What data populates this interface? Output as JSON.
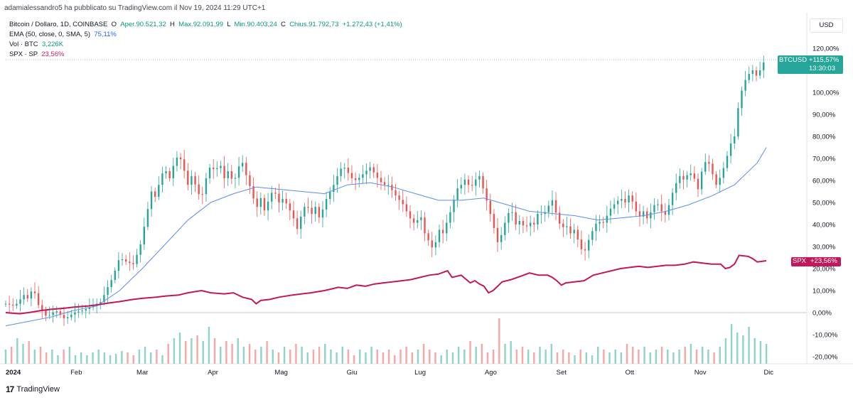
{
  "header": {
    "published_line": "adamialessandro5 ha pubblicato su TradingView.com il Nov 19, 2024 11:29 UTC+1"
  },
  "legend": {
    "symbol": "Bitcoin / Dollaro, 1D, COINBASE",
    "open_label": "O",
    "open_value": "Aper.90.521,32",
    "high_label": "H",
    "high_value": "Max.92.091,99",
    "low_label": "L",
    "low_value": "Min.90.403,24",
    "close_label": "C",
    "close_value": "Chius.91.792,73",
    "change_value": "+1.272,43 (+1,41%)",
    "ema_label": "EMA (50, close, 0, SMA, 5)",
    "ema_value": "75,11%",
    "vol_label": "Vol · BTC",
    "vol_value": "3,226K",
    "spx_label": "SPX · SP",
    "spx_value": "23,56%"
  },
  "currency_button": "USD",
  "price_tags": {
    "btc_symbol": "BTCUSD",
    "btc_change": "+115,57%",
    "btc_countdown": "13:30:03",
    "spx_symbol": "SPX",
    "spx_change": "+23,56%"
  },
  "footer": {
    "brand": "TradingView"
  },
  "colors": {
    "up": "#26a69a",
    "down": "#ef5350",
    "ema": "#5b8def",
    "spx": "#c2185b"
  },
  "chart_data": {
    "type": "line",
    "title": "Bitcoin / Dollaro, 1D, COINBASE",
    "xlabel": "",
    "ylabel": "",
    "y_scale": "percent",
    "ylim": [
      -22,
      123
    ],
    "y_ticks": [
      "120,00%",
      "110,00%",
      "100,00%",
      "90,00%",
      "80,00%",
      "70,00%",
      "60,00%",
      "50,00%",
      "40,00%",
      "30,00%",
      "20,00%",
      "10,00%",
      "0,00%",
      "-10,00%",
      "-20,00%"
    ],
    "y_tick_values": [
      120,
      110,
      100,
      90,
      80,
      70,
      60,
      50,
      40,
      30,
      20,
      10,
      0,
      -10,
      -20
    ],
    "x_ticks": [
      "2024",
      "Feb",
      "Mar",
      "Apr",
      "Mag",
      "Giu",
      "Lug",
      "Ago",
      "Set",
      "Ott",
      "Nov",
      "Dic"
    ],
    "x_tick_days": [
      0,
      31,
      60,
      91,
      121,
      152,
      182,
      213,
      244,
      274,
      305,
      335
    ],
    "x_range_days": [
      0,
      350
    ],
    "btc_close_percent": [
      [
        0,
        4
      ],
      [
        4,
        3
      ],
      [
        8,
        8
      ],
      [
        10,
        6
      ],
      [
        12,
        12
      ],
      [
        14,
        4
      ],
      [
        18,
        -2
      ],
      [
        22,
        1
      ],
      [
        26,
        -3
      ],
      [
        30,
        0
      ],
      [
        34,
        1
      ],
      [
        38,
        3
      ],
      [
        42,
        5
      ],
      [
        44,
        10
      ],
      [
        47,
        16
      ],
      [
        50,
        25
      ],
      [
        53,
        23
      ],
      [
        56,
        22
      ],
      [
        59,
        30
      ],
      [
        62,
        45
      ],
      [
        64,
        55
      ],
      [
        66,
        52
      ],
      [
        68,
        62
      ],
      [
        70,
        65
      ],
      [
        72,
        61
      ],
      [
        74,
        68
      ],
      [
        76,
        72
      ],
      [
        78,
        66
      ],
      [
        80,
        58
      ],
      [
        82,
        63
      ],
      [
        84,
        55
      ],
      [
        86,
        52
      ],
      [
        88,
        61
      ],
      [
        90,
        67
      ],
      [
        92,
        64
      ],
      [
        94,
        68
      ],
      [
        96,
        61
      ],
      [
        98,
        65
      ],
      [
        100,
        58
      ],
      [
        102,
        66
      ],
      [
        104,
        68
      ],
      [
        106,
        61
      ],
      [
        108,
        55
      ],
      [
        110,
        47
      ],
      [
        112,
        52
      ],
      [
        114,
        45
      ],
      [
        116,
        54
      ],
      [
        118,
        55
      ],
      [
        120,
        50
      ],
      [
        122,
        52
      ],
      [
        124,
        48
      ],
      [
        126,
        44
      ],
      [
        128,
        38
      ],
      [
        130,
        45
      ],
      [
        132,
        50
      ],
      [
        134,
        44
      ],
      [
        136,
        48
      ],
      [
        138,
        42
      ],
      [
        140,
        50
      ],
      [
        142,
        54
      ],
      [
        144,
        58
      ],
      [
        146,
        63
      ],
      [
        148,
        67
      ],
      [
        150,
        64
      ],
      [
        152,
        61
      ],
      [
        154,
        60
      ],
      [
        156,
        62
      ],
      [
        158,
        64
      ],
      [
        160,
        66
      ],
      [
        162,
        63
      ],
      [
        164,
        60
      ],
      [
        166,
        58
      ],
      [
        168,
        58
      ],
      [
        170,
        55
      ],
      [
        172,
        52
      ],
      [
        174,
        50
      ],
      [
        176,
        46
      ],
      [
        178,
        42
      ],
      [
        180,
        40
      ],
      [
        182,
        45
      ],
      [
        184,
        36
      ],
      [
        186,
        32
      ],
      [
        188,
        28
      ],
      [
        190,
        38
      ],
      [
        192,
        36
      ],
      [
        194,
        42
      ],
      [
        196,
        48
      ],
      [
        198,
        56
      ],
      [
        200,
        58
      ],
      [
        202,
        61
      ],
      [
        204,
        56
      ],
      [
        206,
        60
      ],
      [
        208,
        62
      ],
      [
        210,
        55
      ],
      [
        212,
        48
      ],
      [
        214,
        40
      ],
      [
        216,
        32
      ],
      [
        218,
        36
      ],
      [
        220,
        44
      ],
      [
        222,
        47
      ],
      [
        224,
        40
      ],
      [
        226,
        42
      ],
      [
        228,
        38
      ],
      [
        230,
        41
      ],
      [
        232,
        40
      ],
      [
        234,
        46
      ],
      [
        236,
        44
      ],
      [
        238,
        48
      ],
      [
        240,
        51
      ],
      [
        242,
        44
      ],
      [
        244,
        38
      ],
      [
        246,
        40
      ],
      [
        248,
        36
      ],
      [
        250,
        38
      ],
      [
        252,
        30
      ],
      [
        254,
        27
      ],
      [
        256,
        33
      ],
      [
        258,
        38
      ],
      [
        260,
        42
      ],
      [
        262,
        40
      ],
      [
        264,
        44
      ],
      [
        266,
        48
      ],
      [
        268,
        50
      ],
      [
        270,
        52
      ],
      [
        272,
        50
      ],
      [
        274,
        54
      ],
      [
        276,
        48
      ],
      [
        278,
        43
      ],
      [
        280,
        46
      ],
      [
        282,
        42
      ],
      [
        284,
        48
      ],
      [
        286,
        50
      ],
      [
        288,
        46
      ],
      [
        290,
        44
      ],
      [
        292,
        52
      ],
      [
        294,
        58
      ],
      [
        296,
        62
      ],
      [
        298,
        60
      ],
      [
        300,
        64
      ],
      [
        302,
        62
      ],
      [
        304,
        56
      ],
      [
        306,
        66
      ],
      [
        308,
        70
      ],
      [
        310,
        64
      ],
      [
        312,
        58
      ],
      [
        314,
        62
      ],
      [
        316,
        68
      ],
      [
        318,
        76
      ],
      [
        320,
        80
      ],
      [
        322,
        96
      ],
      [
        324,
        104
      ],
      [
        326,
        108
      ],
      [
        328,
        110
      ],
      [
        330,
        107
      ],
      [
        332,
        112
      ],
      [
        334,
        116
      ]
    ],
    "ema_percent": [
      [
        0,
        -6
      ],
      [
        10,
        -4
      ],
      [
        20,
        -2
      ],
      [
        30,
        1
      ],
      [
        40,
        3
      ],
      [
        50,
        10
      ],
      [
        60,
        20
      ],
      [
        70,
        31
      ],
      [
        80,
        42
      ],
      [
        90,
        50
      ],
      [
        100,
        54
      ],
      [
        110,
        57
      ],
      [
        120,
        56
      ],
      [
        130,
        55
      ],
      [
        140,
        54
      ],
      [
        150,
        58
      ],
      [
        160,
        59
      ],
      [
        170,
        57
      ],
      [
        180,
        54
      ],
      [
        190,
        51
      ],
      [
        200,
        51
      ],
      [
        210,
        52
      ],
      [
        220,
        49
      ],
      [
        230,
        46
      ],
      [
        240,
        45
      ],
      [
        250,
        44
      ],
      [
        260,
        42
      ],
      [
        270,
        43
      ],
      [
        280,
        44
      ],
      [
        290,
        46
      ],
      [
        300,
        49
      ],
      [
        310,
        53
      ],
      [
        320,
        58
      ],
      [
        330,
        68
      ],
      [
        334,
        75
      ]
    ],
    "spx_percent": [
      [
        0,
        0
      ],
      [
        6,
        -0.5
      ],
      [
        10,
        0
      ],
      [
        16,
        1
      ],
      [
        20,
        1.5
      ],
      [
        26,
        2
      ],
      [
        30,
        2.5
      ],
      [
        36,
        3
      ],
      [
        40,
        3.5
      ],
      [
        46,
        4.5
      ],
      [
        50,
        5
      ],
      [
        56,
        6
      ],
      [
        60,
        6.5
      ],
      [
        66,
        7
      ],
      [
        70,
        7.5
      ],
      [
        76,
        8
      ],
      [
        80,
        9
      ],
      [
        86,
        10
      ],
      [
        90,
        9
      ],
      [
        96,
        8.5
      ],
      [
        100,
        9
      ],
      [
        104,
        7
      ],
      [
        108,
        6
      ],
      [
        110,
        4
      ],
      [
        112,
        5.5
      ],
      [
        116,
        6
      ],
      [
        120,
        7
      ],
      [
        126,
        8
      ],
      [
        130,
        8.5
      ],
      [
        134,
        9
      ],
      [
        140,
        10
      ],
      [
        146,
        11.5
      ],
      [
        150,
        11
      ],
      [
        154,
        12.5
      ],
      [
        158,
        12
      ],
      [
        162,
        13
      ],
      [
        166,
        13.5
      ],
      [
        170,
        14
      ],
      [
        174,
        14.5
      ],
      [
        178,
        15
      ],
      [
        182,
        16
      ],
      [
        186,
        17
      ],
      [
        190,
        17.5
      ],
      [
        194,
        19
      ],
      [
        196,
        16
      ],
      [
        200,
        17
      ],
      [
        204,
        13.5
      ],
      [
        206,
        14.5
      ],
      [
        208,
        13
      ],
      [
        210,
        12
      ],
      [
        212,
        9
      ],
      [
        214,
        10
      ],
      [
        218,
        14
      ],
      [
        222,
        15
      ],
      [
        226,
        16.5
      ],
      [
        230,
        18
      ],
      [
        234,
        17
      ],
      [
        238,
        17
      ],
      [
        240,
        16
      ],
      [
        242,
        14.5
      ],
      [
        244,
        12.5
      ],
      [
        246,
        13.5
      ],
      [
        250,
        14
      ],
      [
        254,
        14.5
      ],
      [
        258,
        17
      ],
      [
        262,
        18
      ],
      [
        266,
        19
      ],
      [
        270,
        20
      ],
      [
        274,
        20.5
      ],
      [
        278,
        21
      ],
      [
        282,
        20.5
      ],
      [
        286,
        21
      ],
      [
        290,
        21.5
      ],
      [
        294,
        21.5
      ],
      [
        298,
        22
      ],
      [
        302,
        23
      ],
      [
        306,
        22.5
      ],
      [
        310,
        22
      ],
      [
        314,
        22
      ],
      [
        316,
        20
      ],
      [
        318,
        20.5
      ],
      [
        320,
        22
      ],
      [
        322,
        26
      ],
      [
        326,
        25.5
      ],
      [
        328,
        24.5
      ],
      [
        330,
        23
      ],
      [
        334,
        23.56
      ]
    ],
    "volume_relative": [
      0.5,
      0.6,
      0.9,
      0.7,
      0.8,
      0.5,
      0.6,
      0.4,
      0.5,
      0.3,
      0.5,
      0.6,
      0.3,
      0.4,
      0.3,
      0.4,
      0.5,
      0.4,
      0.3,
      0.35,
      0.45,
      0.4,
      0.3,
      0.5,
      0.6,
      0.4,
      0.5,
      0.3,
      0.7,
      0.9,
      1.1,
      0.8,
      0.9,
      1.0,
      0.8,
      1.3,
      0.9,
      0.6,
      0.8,
      0.7,
      0.9,
      0.6,
      0.7,
      0.5,
      0.6,
      0.8,
      0.5,
      0.4,
      0.6,
      0.5,
      0.7,
      0.6,
      0.4,
      0.5,
      0.6,
      0.7,
      0.5,
      0.4,
      0.6,
      0.5,
      0.3,
      0.5,
      0.4,
      0.6,
      0.5,
      0.4,
      0.5,
      0.3,
      0.5,
      0.6,
      0.4,
      0.5,
      0.7,
      0.5,
      0.4,
      0.3,
      0.5,
      0.4,
      0.6,
      0.5,
      0.8,
      0.6,
      0.7,
      0.4,
      0.5,
      1.6,
      0.7,
      0.8,
      0.5,
      0.6,
      0.5,
      0.4,
      0.6,
      0.5,
      0.7,
      0.4,
      0.5,
      0.4,
      0.3,
      0.5,
      0.4,
      0.3,
      0.6,
      0.5,
      0.4,
      0.5,
      0.4,
      0.7,
      0.6,
      0.5,
      0.6,
      0.4,
      0.5,
      0.6,
      0.5,
      0.4,
      0.5,
      0.6,
      0.7,
      0.5,
      0.6,
      0.5,
      0.4,
      0.6,
      0.9,
      1.4,
      1.1,
      1.0,
      1.3,
      0.9,
      0.8,
      0.7
    ]
  }
}
